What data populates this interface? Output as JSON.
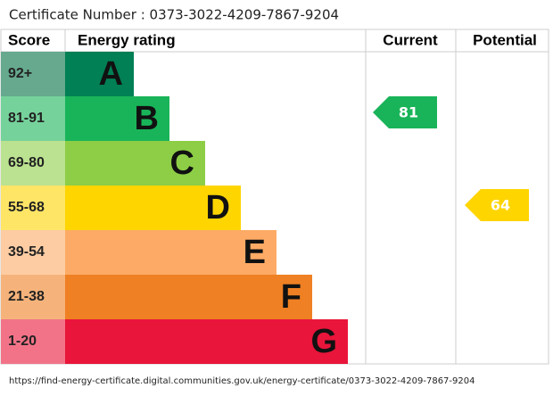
{
  "header": {
    "certificate": "Certificate Number : 0373-3022-4209-7867-9204"
  },
  "table": {
    "columns": [
      "Score",
      "Energy rating",
      "Current",
      "Potential"
    ],
    "bands": [
      {
        "score": "92+",
        "letter": "A",
        "color": "#008054",
        "score_color": "#66a98f"
      },
      {
        "score": "81-91",
        "letter": "B",
        "color": "#19b459",
        "score_color": "#75d29b"
      },
      {
        "score": "69-80",
        "letter": "C",
        "color": "#8dce46",
        "score_color": "#bbe290"
      },
      {
        "score": "55-68",
        "letter": "D",
        "color": "#ffd500",
        "score_color": "#ffe566"
      },
      {
        "score": "39-54",
        "letter": "E",
        "color": "#fcaa65",
        "score_color": "#fdcca3"
      },
      {
        "score": "21-38",
        "letter": "F",
        "color": "#ef8023",
        "score_color": "#f5b37b"
      },
      {
        "score": "1-20",
        "letter": "G",
        "color": "#e9153b",
        "score_color": "#f27388"
      }
    ],
    "current": {
      "value": 81,
      "color": "#19b459"
    },
    "potential": {
      "value": 64,
      "color": "#ffd500"
    }
  },
  "footer": {
    "url": "https://find-energy-certificate.digital.communities.gov.uk/energy-certificate/0373-3022-4209-7867-9204"
  }
}
